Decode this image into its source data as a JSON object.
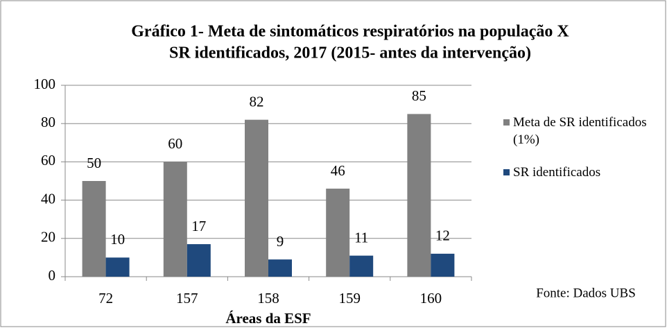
{
  "chart_data": {
    "type": "bar",
    "title": "Gráfico 1- Meta de sintomáticos respiratórios na população X",
    "subtitle": "SR identificados, 2017 (2015- antes da intervenção)",
    "x_label": "Áreas da ESF",
    "annotation": "Fonte: Dados UBS",
    "categories": [
      "72",
      "157",
      "158",
      "159",
      "160"
    ],
    "series": [
      {
        "name": "Meta de SR identificados (1%)",
        "color": "#808080",
        "values": [
          50,
          60,
          82,
          46,
          85
        ]
      },
      {
        "name": "SR identificados",
        "color": "#1f497d",
        "values": [
          10,
          17,
          9,
          11,
          12
        ]
      }
    ],
    "ylim": [
      0,
      100
    ],
    "yticks": [
      0,
      20,
      40,
      60,
      80,
      100
    ],
    "grid": true,
    "legend": "right"
  }
}
